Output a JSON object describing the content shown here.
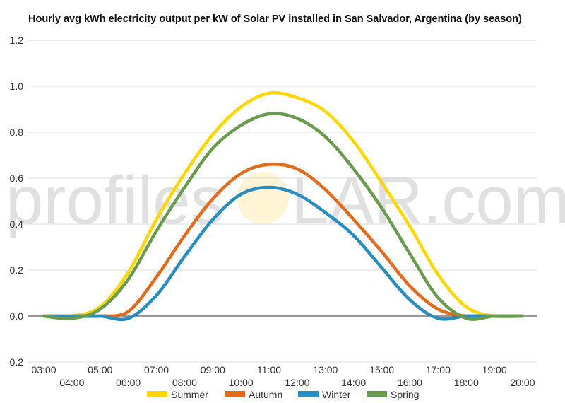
{
  "chart_data": {
    "type": "line",
    "title": "Hourly avg kWh electricity output per kW of Solar PV installed in San Salvador, Argentina (by season)",
    "xlabel": "",
    "ylabel": "",
    "ylim": [
      -0.2,
      1.2
    ],
    "yticks": [
      "-0.2",
      "0.0",
      "0.2",
      "0.4",
      "0.6",
      "0.8",
      "1.0",
      "1.2"
    ],
    "xticks": [
      "03:00",
      "04:00",
      "05:00",
      "06:00",
      "07:00",
      "08:00",
      "09:00",
      "10:00",
      "11:00",
      "12:00",
      "13:00",
      "14:00",
      "15:00",
      "16:00",
      "17:00",
      "18:00",
      "19:00",
      "20:00"
    ],
    "x": [
      "03:00",
      "04:00",
      "05:00",
      "06:00",
      "07:00",
      "08:00",
      "09:00",
      "10:00",
      "11:00",
      "12:00",
      "13:00",
      "14:00",
      "15:00",
      "16:00",
      "17:00",
      "18:00",
      "19:00",
      "20:00"
    ],
    "grid": "horizontal",
    "legend_position": "bottom",
    "series": [
      {
        "name": "Summer",
        "color": "#ffd700",
        "values": [
          0.0,
          0.0,
          0.04,
          0.19,
          0.42,
          0.62,
          0.79,
          0.91,
          0.97,
          0.95,
          0.89,
          0.76,
          0.58,
          0.39,
          0.18,
          0.04,
          0.0,
          0.0
        ]
      },
      {
        "name": "Autumn",
        "color": "#e06c1f",
        "values": [
          0.0,
          0.0,
          0.0,
          0.02,
          0.17,
          0.35,
          0.51,
          0.62,
          0.66,
          0.64,
          0.55,
          0.42,
          0.28,
          0.13,
          0.03,
          0.0,
          0.0,
          0.0
        ]
      },
      {
        "name": "Winter",
        "color": "#2b8cbf",
        "values": [
          0.0,
          0.0,
          0.0,
          -0.01,
          0.09,
          0.26,
          0.42,
          0.53,
          0.56,
          0.53,
          0.45,
          0.35,
          0.21,
          0.07,
          -0.01,
          0.0,
          0.0,
          0.0
        ]
      },
      {
        "name": "Spring",
        "color": "#6a9a4e",
        "values": [
          0.0,
          -0.01,
          0.03,
          0.16,
          0.37,
          0.56,
          0.73,
          0.83,
          0.88,
          0.86,
          0.78,
          0.64,
          0.47,
          0.27,
          0.08,
          -0.01,
          0.0,
          0.0
        ]
      }
    ]
  },
  "watermark": {
    "text_left": "profiles",
    "text_right": "LAR.com",
    "sun_color": "#ffe9a8"
  }
}
